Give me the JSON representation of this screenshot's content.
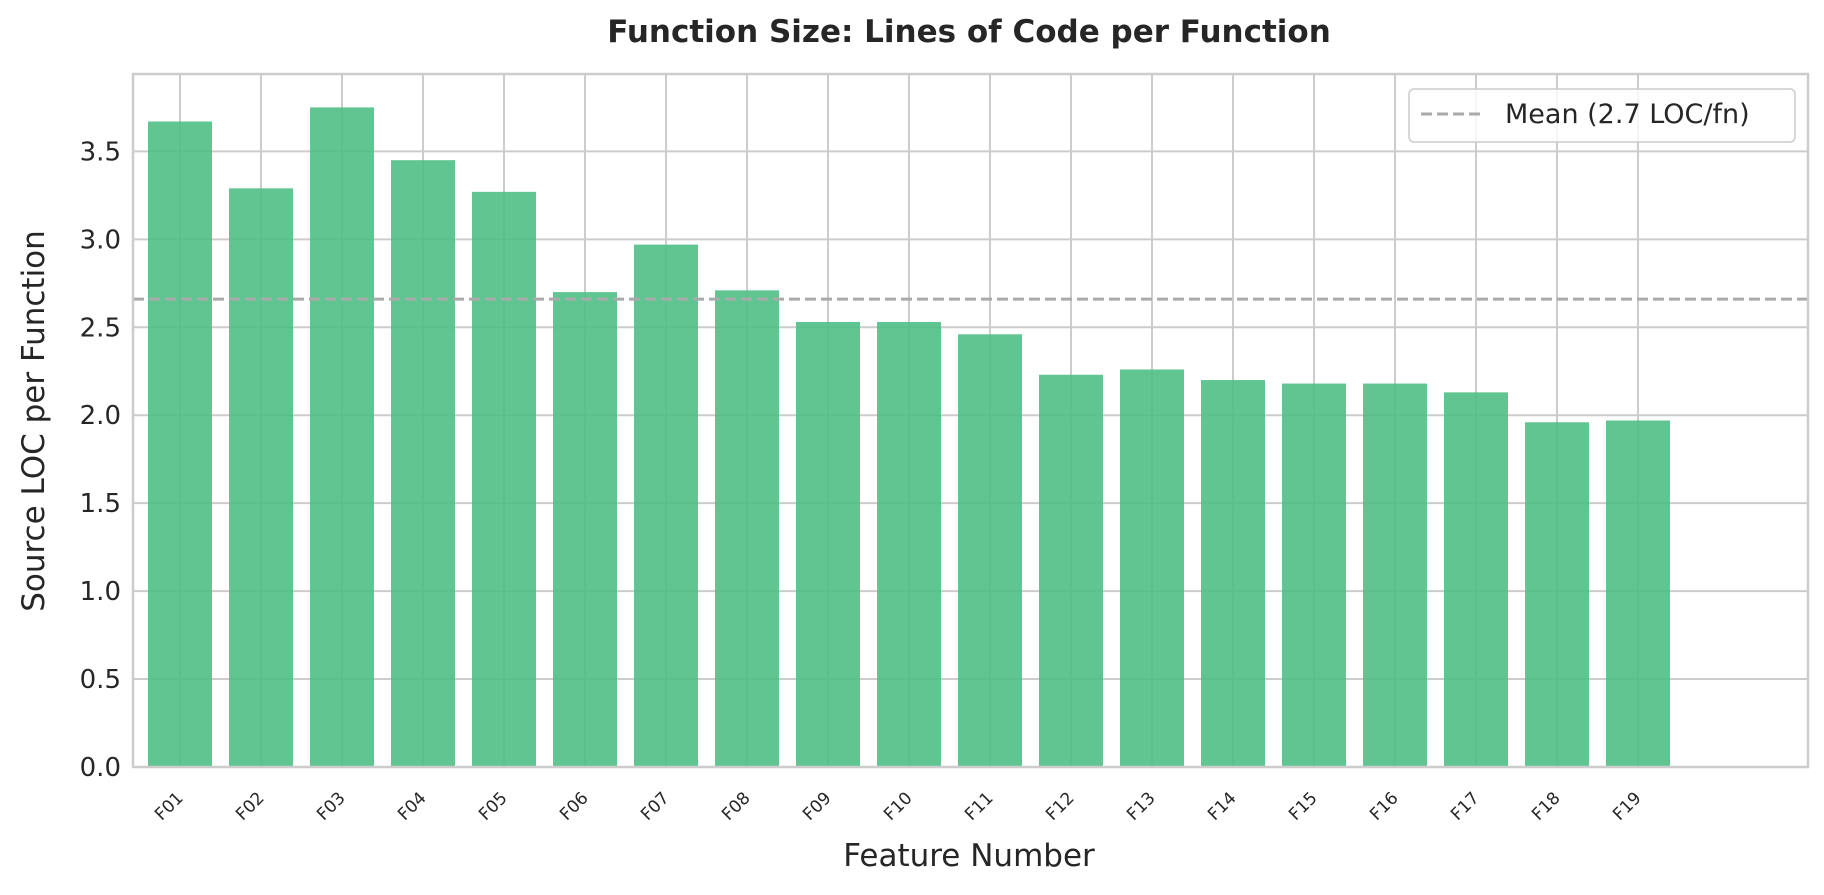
{
  "chart_data": {
    "type": "bar",
    "title": "Function Size: Lines of Code per Function",
    "xlabel": "Feature Number",
    "ylabel": "Source LOC per Function",
    "categories": [
      "F01",
      "F02",
      "F03",
      "F04",
      "F05",
      "F06",
      "F07",
      "F08",
      "F09",
      "F10",
      "F11",
      "F12",
      "F13",
      "F14",
      "F15",
      "F16",
      "F17",
      "F18",
      "F19"
    ],
    "values": [
      3.67,
      3.29,
      3.75,
      3.45,
      3.27,
      2.7,
      2.97,
      2.71,
      2.53,
      2.53,
      2.46,
      2.23,
      2.26,
      2.2,
      2.18,
      2.18,
      2.13,
      1.96,
      1.97
    ],
    "ylim": [
      0,
      3.94
    ],
    "yticks": [
      "0.0",
      "0.5",
      "1.0",
      "1.5",
      "2.0",
      "2.5",
      "3.0",
      "3.5"
    ],
    "reference_line": {
      "label": "Mean (2.7 LOC/fn)",
      "value": 2.66,
      "style": "dashed",
      "color": "#aaaaaa"
    },
    "bar_color": "#4fbf85",
    "grid": true,
    "legend_position": "top-right"
  }
}
